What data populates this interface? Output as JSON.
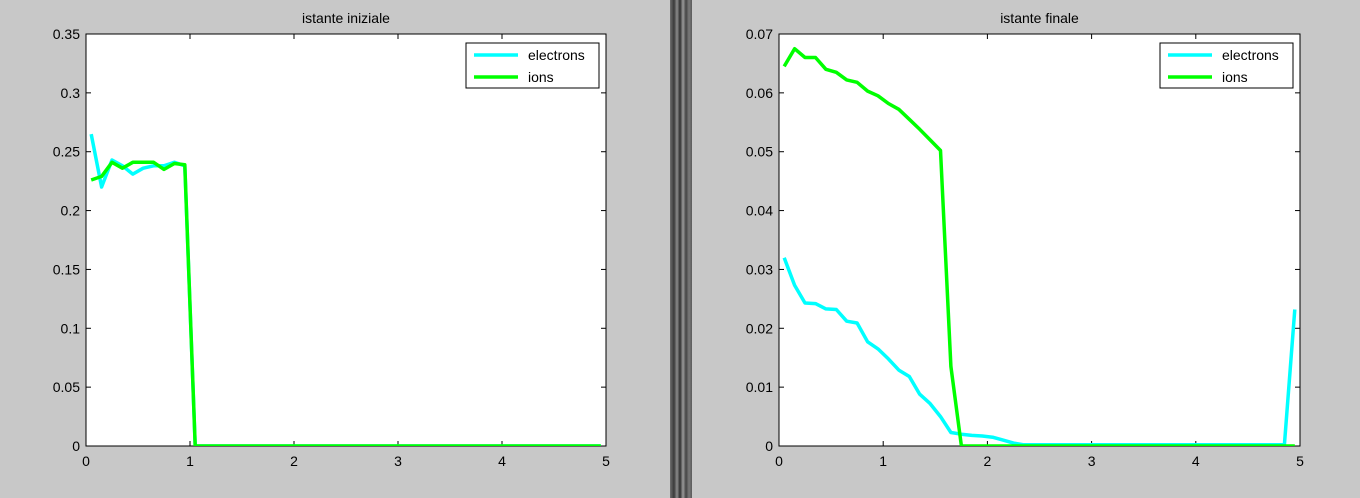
{
  "colors": {
    "electrons": "#00ffff",
    "ions": "#00ff00",
    "figure_background": "#c8c8c8",
    "axes_background": "#ffffff"
  },
  "chart_data": [
    {
      "type": "line",
      "title": "istante iniziale",
      "xlabel": "",
      "ylabel": "",
      "xlim": [
        0,
        5
      ],
      "ylim": [
        0,
        0.35
      ],
      "xticks": [
        "0",
        "1",
        "2",
        "3",
        "4",
        "5"
      ],
      "yticks": [
        "0",
        "0.05",
        "0.1",
        "0.15",
        "0.2",
        "0.25",
        "0.3",
        "0.35"
      ],
      "grid": false,
      "legend": "top-right",
      "series": [
        {
          "name": "electrons",
          "color": "#00ffff",
          "x": [
            0.05,
            0.15,
            0.25,
            0.35,
            0.45,
            0.55,
            0.65,
            0.75,
            0.85,
            0.95,
            1.05,
            1.15,
            1.5,
            2,
            2.5,
            3,
            3.5,
            4,
            4.5,
            4.95
          ],
          "y": [
            0.265,
            0.22,
            0.243,
            0.238,
            0.231,
            0.236,
            0.238,
            0.238,
            0.241,
            0.238,
            0,
            0,
            0,
            0,
            0,
            0,
            0,
            0,
            0,
            0
          ]
        },
        {
          "name": "ions",
          "color": "#00ff00",
          "x": [
            0.05,
            0.15,
            0.25,
            0.35,
            0.45,
            0.55,
            0.65,
            0.75,
            0.85,
            0.95,
            1.05,
            1.15,
            1.5,
            2,
            2.5,
            3,
            3.5,
            4,
            4.5,
            4.95
          ],
          "y": [
            0.226,
            0.229,
            0.241,
            0.236,
            0.241,
            0.241,
            0.241,
            0.235,
            0.24,
            0.239,
            0,
            0,
            0,
            0,
            0,
            0,
            0,
            0,
            0,
            0
          ]
        }
      ]
    },
    {
      "type": "line",
      "title": "istante finale",
      "xlabel": "",
      "ylabel": "",
      "xlim": [
        0,
        5
      ],
      "ylim": [
        0,
        0.07
      ],
      "xticks": [
        "0",
        "1",
        "2",
        "3",
        "4",
        "5"
      ],
      "yticks": [
        "0",
        "0.01",
        "0.02",
        "0.03",
        "0.04",
        "0.05",
        "0.06",
        "0.07"
      ],
      "grid": false,
      "legend": "top-right",
      "series": [
        {
          "name": "electrons",
          "color": "#00ffff",
          "x": [
            0.05,
            0.15,
            0.25,
            0.35,
            0.45,
            0.55,
            0.65,
            0.75,
            0.85,
            0.95,
            1.05,
            1.15,
            1.25,
            1.35,
            1.45,
            1.55,
            1.65,
            1.75,
            1.85,
            1.95,
            2.05,
            2.15,
            2.25,
            2.35,
            2.5,
            3,
            3.5,
            4,
            4.5,
            4.85,
            4.95
          ],
          "y": [
            0.032,
            0.0273,
            0.0243,
            0.0242,
            0.0233,
            0.0232,
            0.0212,
            0.0209,
            0.0177,
            0.0165,
            0.0148,
            0.0129,
            0.0118,
            0.0088,
            0.0072,
            0.005,
            0.0023,
            0.002,
            0.0018,
            0.0017,
            0.0015,
            0.001,
            0.0005,
            0.0002,
            0.0002,
            0.0002,
            0.0002,
            0.0002,
            0.0002,
            0.0002,
            0.0232
          ]
        },
        {
          "name": "ions",
          "color": "#00ff00",
          "x": [
            0.05,
            0.15,
            0.25,
            0.35,
            0.45,
            0.55,
            0.65,
            0.75,
            0.85,
            0.95,
            1.05,
            1.15,
            1.25,
            1.35,
            1.45,
            1.55,
            1.65,
            1.75,
            2,
            2.5,
            3,
            3.5,
            4,
            4.5,
            4.95
          ],
          "y": [
            0.0645,
            0.0675,
            0.066,
            0.066,
            0.064,
            0.0635,
            0.0622,
            0.0618,
            0.0603,
            0.0595,
            0.0582,
            0.0572,
            0.0555,
            0.0538,
            0.052,
            0.0502,
            0.0135,
            0,
            0,
            0,
            0,
            0,
            0,
            0,
            0
          ]
        }
      ]
    }
  ]
}
